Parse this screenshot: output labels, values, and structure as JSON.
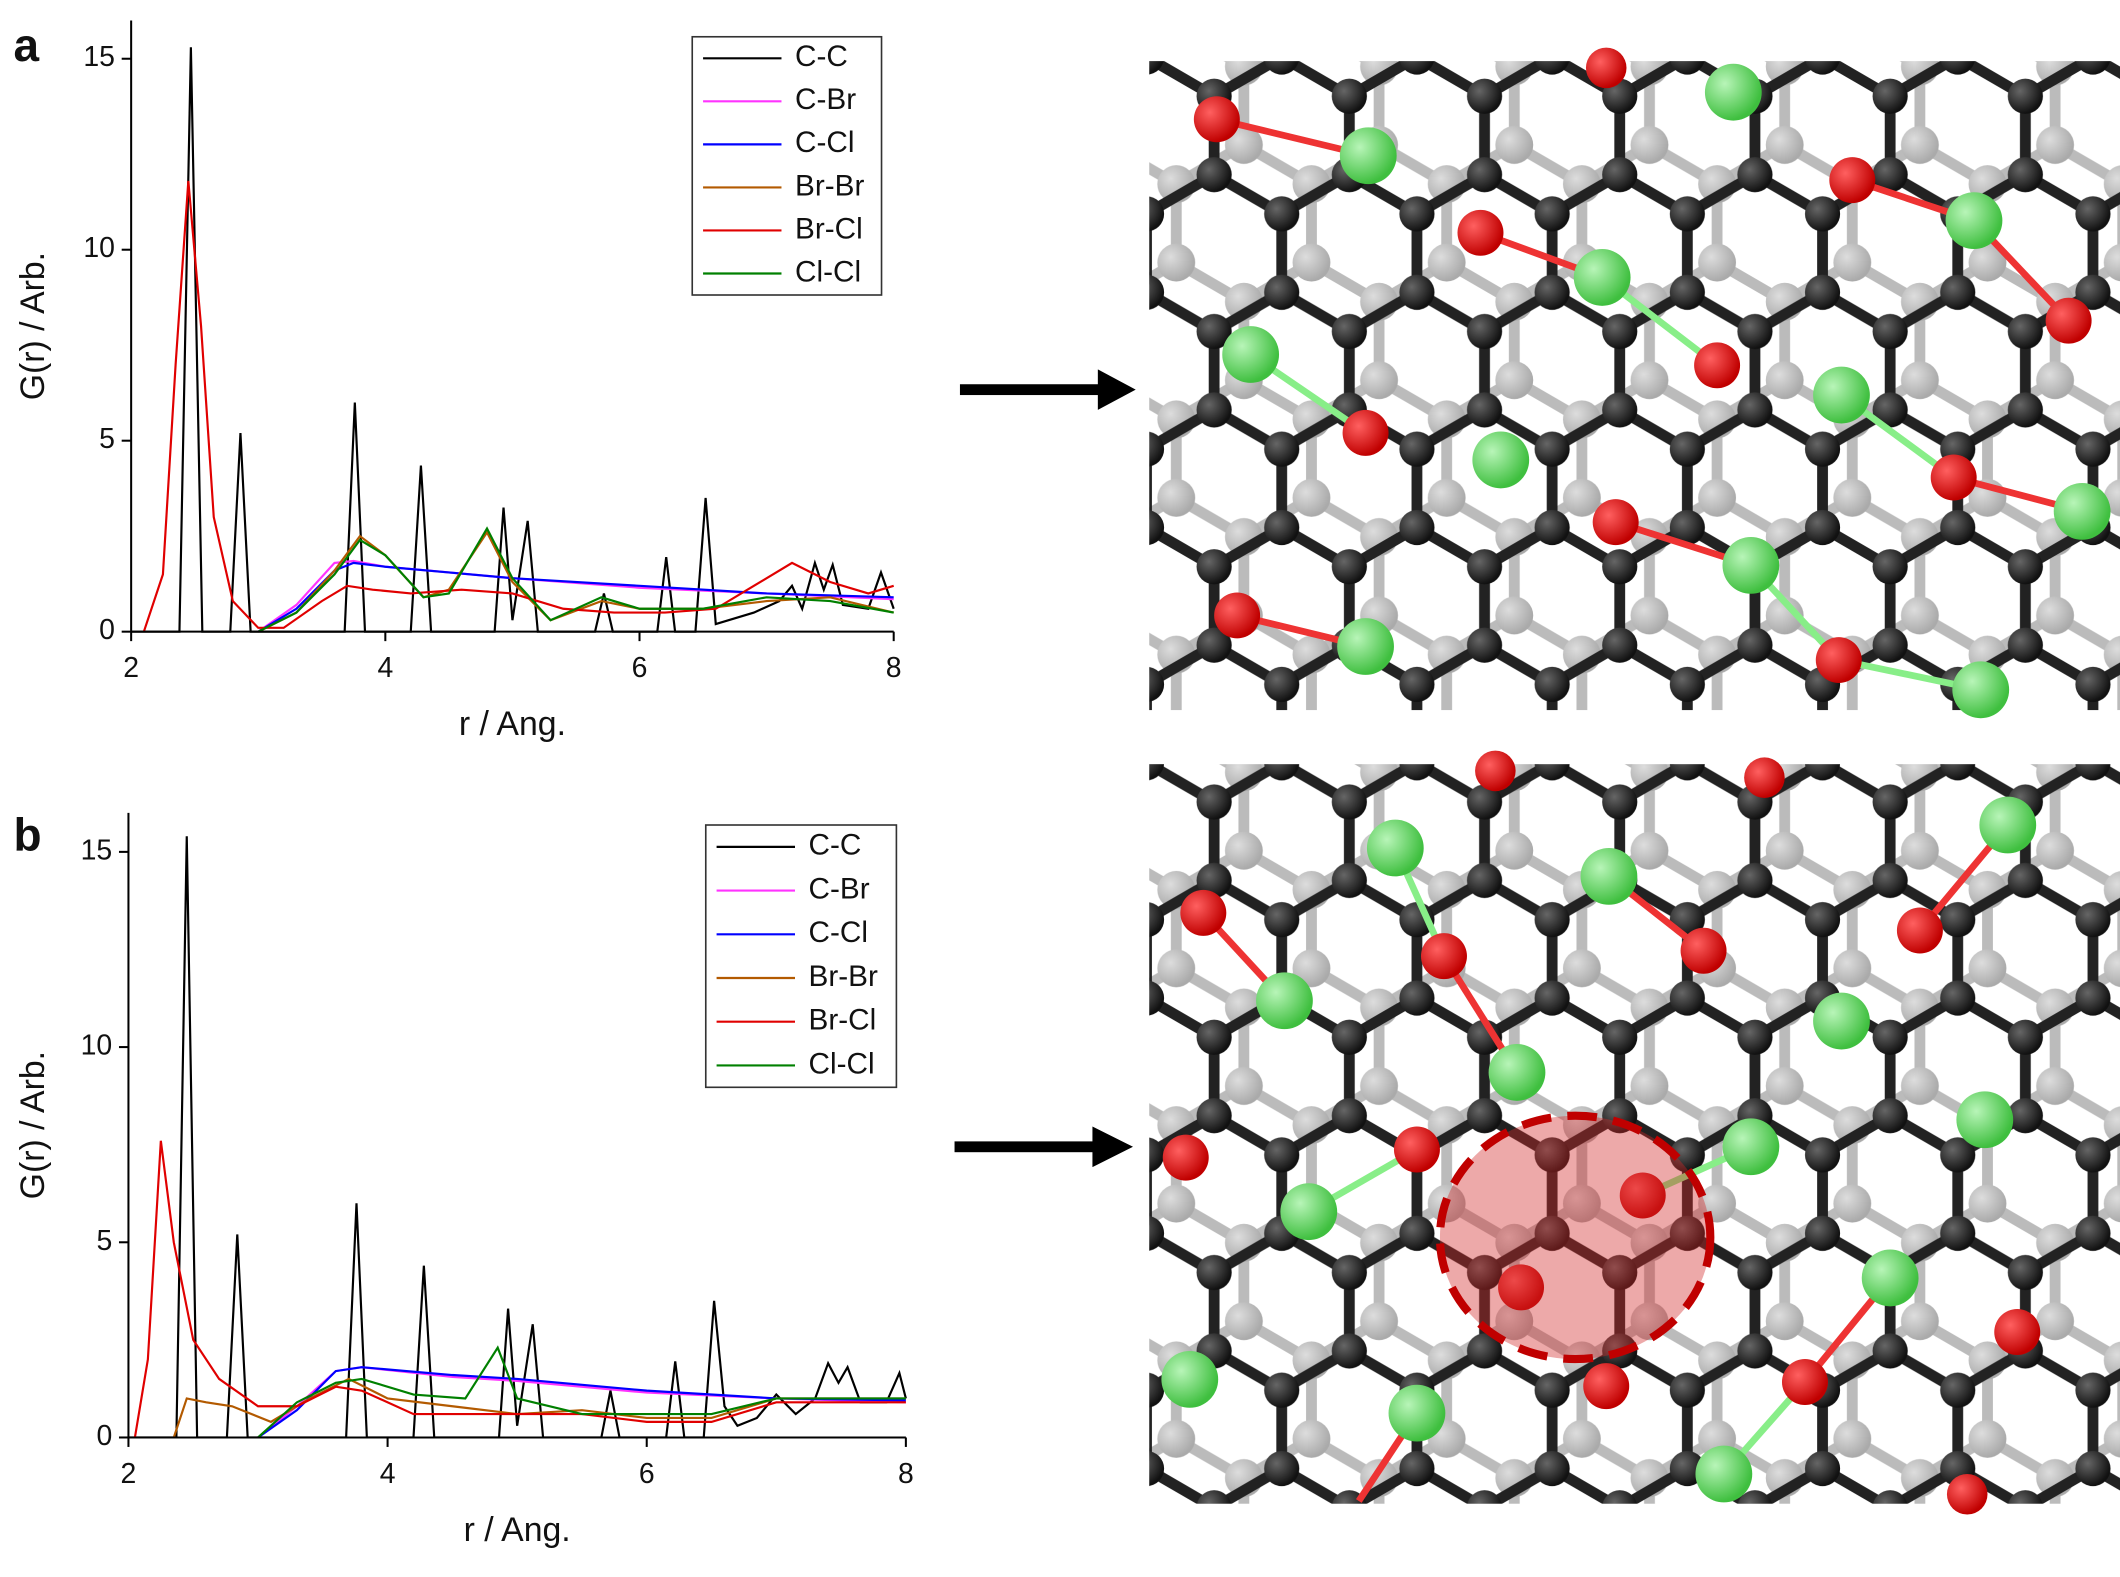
{
  "chart_data": [
    {
      "type": "line",
      "panel_label": "a",
      "x_label": "r / Ang.",
      "y_label": "G(r) / Arb.",
      "xlim": [
        2,
        8
      ],
      "xticks": [
        2,
        4,
        6,
        8
      ],
      "ylim": [
        0,
        16
      ],
      "yticks": [
        0,
        5,
        10,
        15
      ],
      "legend": "upper right",
      "series": [
        {
          "name": "C-C",
          "color": "#000000",
          "x": [
            2.0,
            2.38,
            2.47,
            2.56,
            2.78,
            2.86,
            2.94,
            3.68,
            3.76,
            3.84,
            4.2,
            4.28,
            4.36,
            4.86,
            4.93,
            5.0,
            5.12,
            5.2,
            5.65,
            5.72,
            5.79,
            6.14,
            6.21,
            6.28,
            6.44,
            6.52,
            6.6,
            6.9,
            7.1,
            7.2,
            7.28,
            7.38,
            7.45,
            7.52,
            7.6,
            7.8,
            7.9,
            8.0
          ],
          "values": [
            0,
            0,
            15.3,
            0,
            0,
            5.2,
            0,
            0,
            6.0,
            0,
            0,
            4.35,
            0,
            0,
            3.25,
            0.3,
            2.9,
            0,
            0,
            1.0,
            0,
            0,
            1.95,
            0,
            0,
            3.5,
            0.2,
            0.5,
            0.8,
            1.2,
            0.6,
            1.8,
            1.1,
            1.75,
            0.7,
            0.6,
            1.55,
            0.6
          ]
        },
        {
          "name": "C-Br",
          "color": "#ff33ff",
          "x": [
            3.0,
            3.3,
            3.6,
            3.75,
            4.0,
            5.0,
            6.0,
            7.0,
            8.0
          ],
          "values": [
            0,
            0.7,
            1.8,
            1.85,
            1.7,
            1.4,
            1.15,
            1.0,
            0.85
          ]
        },
        {
          "name": "C-Cl",
          "color": "#0000ff",
          "x": [
            3.0,
            3.3,
            3.6,
            3.75,
            4.0,
            4.5,
            5.0,
            6.0,
            7.0,
            8.0
          ],
          "values": [
            0,
            0.6,
            1.6,
            1.8,
            1.7,
            1.55,
            1.4,
            1.2,
            1.0,
            0.9
          ]
        },
        {
          "name": "Br-Br",
          "color": "#b35a00",
          "x": [
            3.0,
            3.3,
            3.6,
            3.8,
            4.0,
            4.3,
            4.5,
            4.8,
            5.0,
            5.3,
            5.7,
            6.0,
            6.5,
            7.0,
            7.5,
            8.0
          ],
          "values": [
            0,
            0.5,
            1.6,
            2.5,
            2.0,
            0.9,
            1.1,
            2.6,
            1.3,
            0.3,
            0.8,
            0.6,
            0.6,
            0.8,
            0.9,
            0.5
          ]
        },
        {
          "name": "Br-Cl",
          "color": "#e00000",
          "x": [
            2.1,
            2.25,
            2.35,
            2.45,
            2.55,
            2.65,
            2.8,
            3.0,
            3.2,
            3.5,
            3.7,
            3.9,
            4.2,
            4.6,
            5.0,
            5.4,
            5.8,
            6.2,
            6.6,
            6.9,
            7.2,
            7.5,
            7.8,
            8.0
          ],
          "values": [
            0,
            1.5,
            7,
            11.8,
            8,
            3,
            0.8,
            0.1,
            0.1,
            0.8,
            1.2,
            1.1,
            1.0,
            1.1,
            1.0,
            0.6,
            0.5,
            0.5,
            0.6,
            1.2,
            1.8,
            1.3,
            1.0,
            1.2
          ]
        },
        {
          "name": "Cl-Cl",
          "color": "#008000",
          "x": [
            3.0,
            3.3,
            3.6,
            3.8,
            4.0,
            4.3,
            4.5,
            4.8,
            5.0,
            5.3,
            5.7,
            6.0,
            6.5,
            7.0,
            7.5,
            8.0
          ],
          "values": [
            0,
            0.5,
            1.5,
            2.4,
            2.0,
            0.9,
            1.0,
            2.7,
            1.4,
            0.3,
            0.9,
            0.6,
            0.6,
            0.9,
            0.8,
            0.5
          ]
        }
      ]
    },
    {
      "type": "line",
      "panel_label": "b",
      "x_label": "r / Ang.",
      "y_label": "G(r) / Arb.",
      "xlim": [
        2,
        8
      ],
      "xticks": [
        2,
        4,
        6,
        8
      ],
      "ylim": [
        0,
        16
      ],
      "yticks": [
        0,
        5,
        10,
        15
      ],
      "legend": "upper right",
      "series": [
        {
          "name": "C-C",
          "color": "#000000",
          "x": [
            2.0,
            2.37,
            2.45,
            2.53,
            2.76,
            2.84,
            2.92,
            3.68,
            3.76,
            3.84,
            4.2,
            4.28,
            4.36,
            4.86,
            4.93,
            5.0,
            5.12,
            5.2,
            5.65,
            5.72,
            5.79,
            6.15,
            6.22,
            6.29,
            6.44,
            6.52,
            6.6,
            6.7,
            6.85,
            7.0,
            7.15,
            7.3,
            7.4,
            7.48,
            7.55,
            7.65,
            7.85,
            7.95,
            8.0
          ],
          "values": [
            0,
            0,
            15.4,
            0,
            0,
            5.2,
            0,
            0,
            6.0,
            0,
            0,
            4.4,
            0,
            0,
            3.3,
            0.3,
            2.9,
            0,
            0,
            1.2,
            0,
            0,
            1.95,
            0,
            0,
            3.5,
            0.8,
            0.3,
            0.5,
            1.1,
            0.6,
            1.0,
            1.9,
            1.4,
            1.8,
            0.9,
            0.9,
            1.65,
            1.0
          ]
        },
        {
          "name": "C-Br",
          "color": "#ff33ff",
          "x": [
            3.0,
            3.3,
            3.6,
            3.8,
            4.5,
            5.0,
            6.0,
            7.0,
            8.0
          ],
          "values": [
            0,
            0.8,
            1.7,
            1.8,
            1.55,
            1.45,
            1.15,
            1.0,
            0.9
          ]
        },
        {
          "name": "C-Cl",
          "color": "#0000ff",
          "x": [
            3.0,
            3.3,
            3.6,
            3.8,
            4.5,
            5.0,
            6.0,
            7.0,
            8.0
          ],
          "values": [
            0,
            0.7,
            1.7,
            1.8,
            1.6,
            1.5,
            1.2,
            1.0,
            0.95
          ]
        },
        {
          "name": "Br-Br",
          "color": "#b35a00",
          "x": [
            2.35,
            2.45,
            2.6,
            2.8,
            3.1,
            3.4,
            3.7,
            4.0,
            4.5,
            5.0,
            5.5,
            6.0,
            6.5,
            7.0,
            8.0
          ],
          "values": [
            0,
            1.0,
            0.9,
            0.8,
            0.4,
            1.0,
            1.5,
            1.0,
            0.8,
            0.6,
            0.7,
            0.5,
            0.5,
            1.0,
            1.0
          ]
        },
        {
          "name": "Br-Cl",
          "color": "#e00000",
          "x": [
            2.05,
            2.15,
            2.25,
            2.35,
            2.5,
            2.7,
            3.0,
            3.3,
            3.6,
            3.8,
            4.2,
            4.6,
            5.0,
            5.5,
            6.0,
            6.5,
            7.0,
            8.0
          ],
          "values": [
            0,
            2,
            7.6,
            5,
            2.5,
            1.5,
            0.8,
            0.8,
            1.3,
            1.2,
            0.6,
            0.6,
            0.6,
            0.6,
            0.4,
            0.4,
            0.9,
            0.9
          ]
        },
        {
          "name": "Cl-Cl",
          "color": "#008000",
          "x": [
            3.0,
            3.3,
            3.6,
            3.8,
            4.2,
            4.6,
            4.85,
            5.0,
            5.5,
            6.0,
            6.5,
            7.0,
            8.0
          ],
          "values": [
            0,
            0.9,
            1.4,
            1.5,
            1.1,
            1.0,
            2.3,
            1.0,
            0.6,
            0.6,
            0.6,
            1.0,
            1.0
          ]
        }
      ]
    }
  ]
}
